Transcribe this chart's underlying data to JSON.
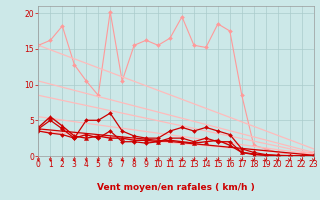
{
  "bg_color": "#cce8e8",
  "grid_color": "#aacccc",
  "xlabel": "Vent moyen/en rafales ( km/h )",
  "ylim": [
    0,
    21
  ],
  "xlim": [
    0,
    23
  ],
  "yticks": [
    0,
    5,
    10,
    15,
    20
  ],
  "xticks": [
    0,
    1,
    2,
    3,
    4,
    5,
    6,
    7,
    8,
    9,
    10,
    11,
    12,
    13,
    14,
    15,
    16,
    17,
    18,
    19,
    20,
    21,
    22,
    23
  ],
  "series": [
    {
      "x": [
        0,
        1,
        2,
        3,
        4,
        5,
        6,
        7,
        8,
        9,
        10,
        11,
        12,
        13,
        14,
        15,
        16,
        17,
        18,
        19,
        20,
        21,
        22,
        23
      ],
      "y": [
        15.5,
        16.2,
        18.2,
        12.8,
        10.5,
        8.5,
        20.2,
        10.5,
        15.5,
        16.2,
        15.5,
        16.5,
        19.5,
        15.5,
        15.2,
        18.5,
        17.5,
        8.5,
        1.5,
        1.0,
        0.5,
        0.3,
        0.5,
        0.5
      ],
      "color": "#ff9999",
      "marker": "D",
      "markersize": 2,
      "lw": 0.8
    },
    {
      "x": [
        0,
        23
      ],
      "y": [
        15.5,
        1.0
      ],
      "color": "#ffbbbb",
      "marker": "None",
      "markersize": 0,
      "lw": 0.9
    },
    {
      "x": [
        0,
        23
      ],
      "y": [
        10.5,
        0.5
      ],
      "color": "#ffbbbb",
      "marker": "None",
      "markersize": 0,
      "lw": 0.9
    },
    {
      "x": [
        0,
        23
      ],
      "y": [
        8.5,
        0.3
      ],
      "color": "#ffbbbb",
      "marker": "None",
      "markersize": 0,
      "lw": 0.9
    },
    {
      "x": [
        0,
        23
      ],
      "y": [
        5.5,
        0.2
      ],
      "color": "#ffbbbb",
      "marker": "None",
      "markersize": 0,
      "lw": 0.9
    },
    {
      "x": [
        0,
        23
      ],
      "y": [
        3.5,
        0.1
      ],
      "color": "#ffbbbb",
      "marker": "None",
      "markersize": 0,
      "lw": 0.9
    },
    {
      "x": [
        0,
        1,
        2,
        3,
        4,
        5,
        6,
        7,
        8,
        9,
        10,
        11,
        12,
        13,
        14,
        15,
        16,
        17,
        18,
        19,
        20,
        21,
        22,
        23
      ],
      "y": [
        4.0,
        5.5,
        4.2,
        2.8,
        2.5,
        2.8,
        2.5,
        2.5,
        2.2,
        2.2,
        2.0,
        2.2,
        2.0,
        1.8,
        2.0,
        2.2,
        1.5,
        0.5,
        0.2,
        0.1,
        0.05,
        0.02,
        0.01,
        0.05
      ],
      "color": "#cc0000",
      "marker": "^",
      "markersize": 3,
      "lw": 1.0
    },
    {
      "x": [
        0,
        1,
        2,
        3,
        4,
        5,
        6,
        7,
        8,
        9,
        10,
        11,
        12,
        13,
        14,
        15,
        16,
        17,
        18,
        19,
        20,
        21,
        22,
        23
      ],
      "y": [
        3.8,
        5.0,
        3.8,
        2.5,
        5.0,
        5.0,
        6.0,
        3.5,
        2.8,
        2.5,
        2.5,
        3.5,
        4.0,
        3.5,
        4.0,
        3.5,
        3.0,
        1.0,
        0.5,
        0.2,
        0.1,
        0.05,
        0.02,
        0.1
      ],
      "color": "#cc0000",
      "marker": "D",
      "markersize": 2,
      "lw": 0.9
    },
    {
      "x": [
        0,
        1,
        2,
        3,
        4,
        5,
        6,
        7,
        8,
        9,
        10,
        11,
        12,
        13,
        14,
        15,
        16,
        17,
        18,
        19,
        20,
        21,
        22,
        23
      ],
      "y": [
        3.5,
        3.2,
        3.0,
        2.5,
        3.0,
        2.5,
        3.5,
        2.0,
        2.0,
        1.8,
        2.0,
        2.5,
        2.5,
        2.0,
        2.5,
        2.0,
        2.0,
        0.5,
        0.3,
        0.1,
        0.05,
        0.02,
        0.01,
        0.05
      ],
      "color": "#cc0000",
      "marker": "D",
      "markersize": 2,
      "lw": 0.9
    },
    {
      "x": [
        0,
        23
      ],
      "y": [
        3.8,
        0.1
      ],
      "color": "#cc0000",
      "marker": "None",
      "markersize": 0,
      "lw": 0.9
    }
  ],
  "tick_fontsize": 5.5,
  "label_fontsize": 6.5
}
